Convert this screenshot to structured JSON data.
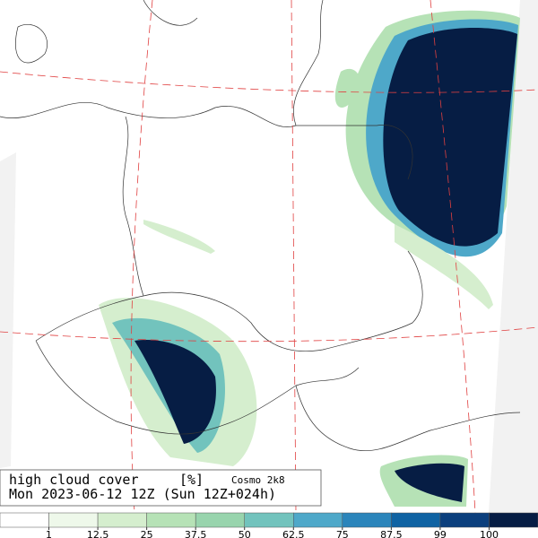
{
  "legend": {
    "title": "high cloud cover",
    "unit": "[%]",
    "model": "Cosmo 2k8",
    "time": "Mon 2023-06-12 12Z (Sun 12Z+024h)"
  },
  "colorbar": {
    "ticks": [
      "1",
      "12.5",
      "25",
      "37.5",
      "50",
      "62.5",
      "75",
      "87.5",
      "99",
      "100"
    ],
    "colors": [
      "#ffffff",
      "#eef8ea",
      "#d5eece",
      "#b6e2b6",
      "#98d4ad",
      "#72c3bd",
      "#4ea8c9",
      "#2b85bb",
      "#0f63a3",
      "#0b3f7d",
      "#061d44"
    ]
  }
}
